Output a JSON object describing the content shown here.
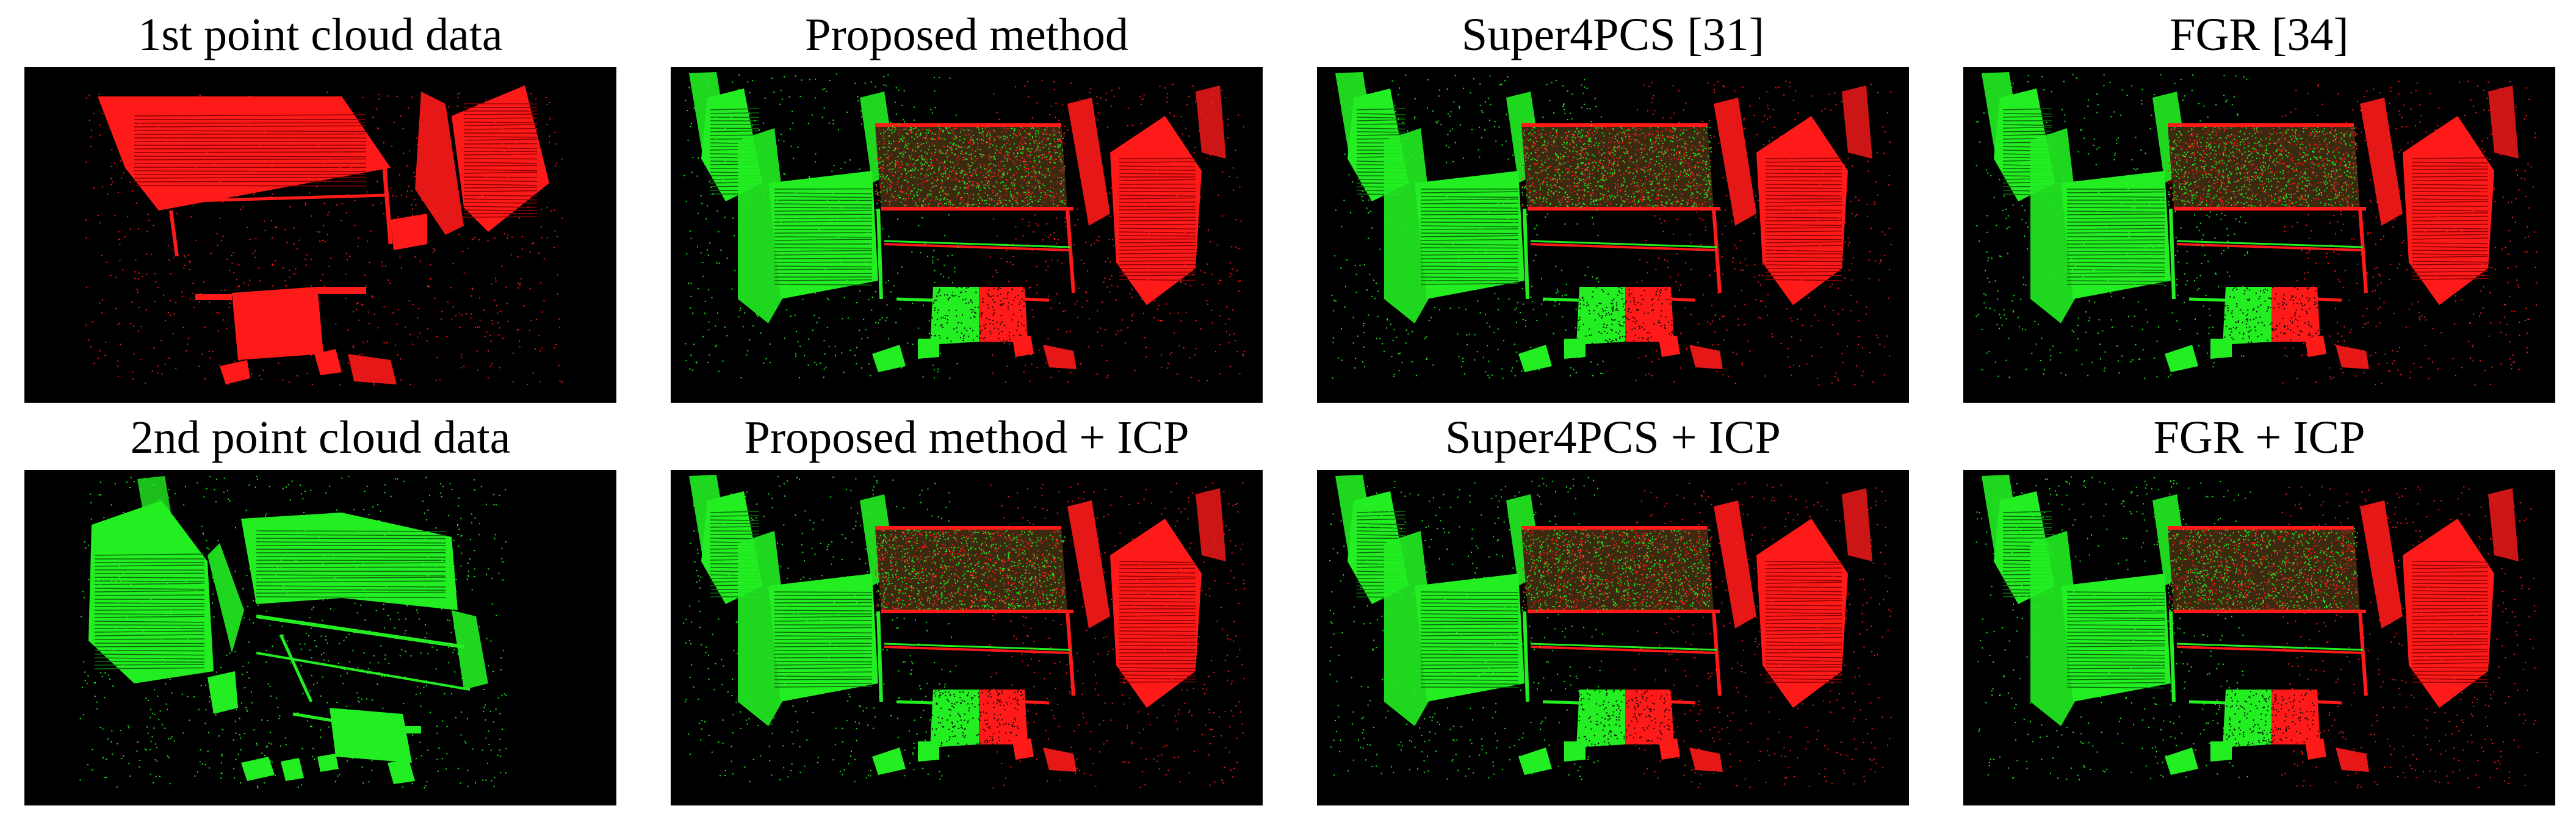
{
  "figure": {
    "panels": [
      {
        "caption": "1st point cloud data",
        "content": "source"
      },
      {
        "caption": "Proposed method",
        "content": "merged"
      },
      {
        "caption": "Super4PCS [31]",
        "content": "merged"
      },
      {
        "caption": "FGR [34]",
        "content": "merged"
      },
      {
        "caption": "2nd point cloud data",
        "content": "target"
      },
      {
        "caption": "Proposed method + ICP",
        "content": "merged"
      },
      {
        "caption": "Super4PCS + ICP",
        "content": "merged"
      },
      {
        "caption": "FGR + ICP",
        "content": "merged"
      }
    ],
    "colors": {
      "background": "#000000",
      "source_cloud": "#ff1a1a",
      "target_cloud": "#22ee22"
    }
  }
}
